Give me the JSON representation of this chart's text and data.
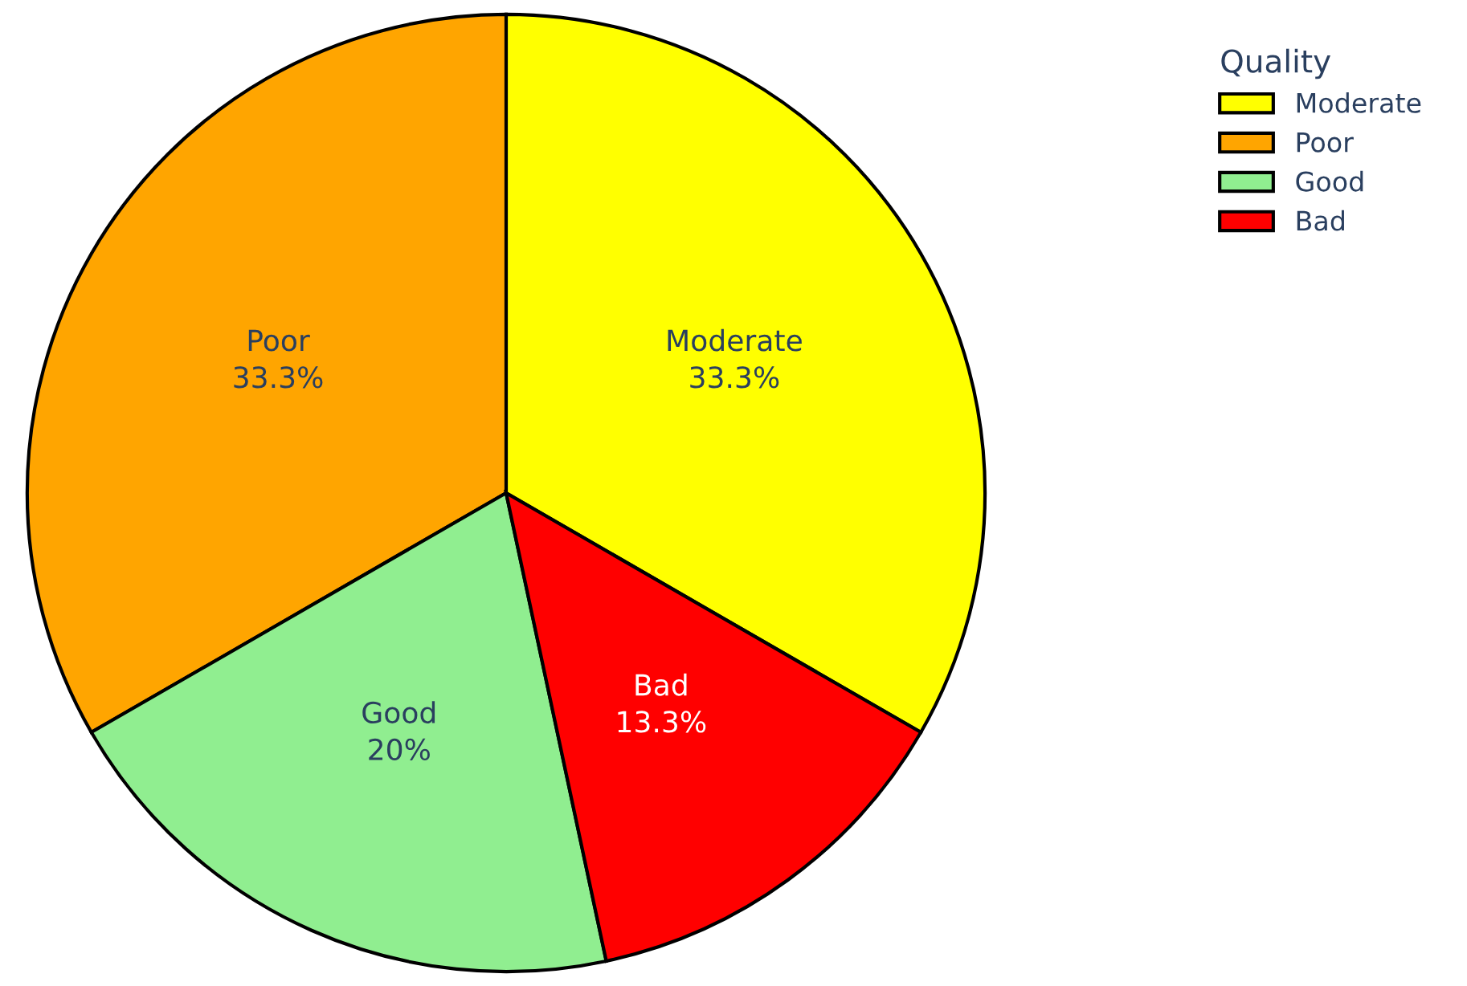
{
  "chart_data": {
    "type": "pie",
    "legend_title": "Quality",
    "categories": [
      "Moderate",
      "Poor",
      "Good",
      "Bad"
    ],
    "values": [
      33.3,
      33.3,
      20,
      13.3
    ],
    "value_labels": [
      "33.3%",
      "33.3%",
      "20%",
      "13.3%"
    ],
    "colors": [
      "#ffff00",
      "#ffa500",
      "#90ee90",
      "#ff0000"
    ],
    "legend": "top right"
  }
}
